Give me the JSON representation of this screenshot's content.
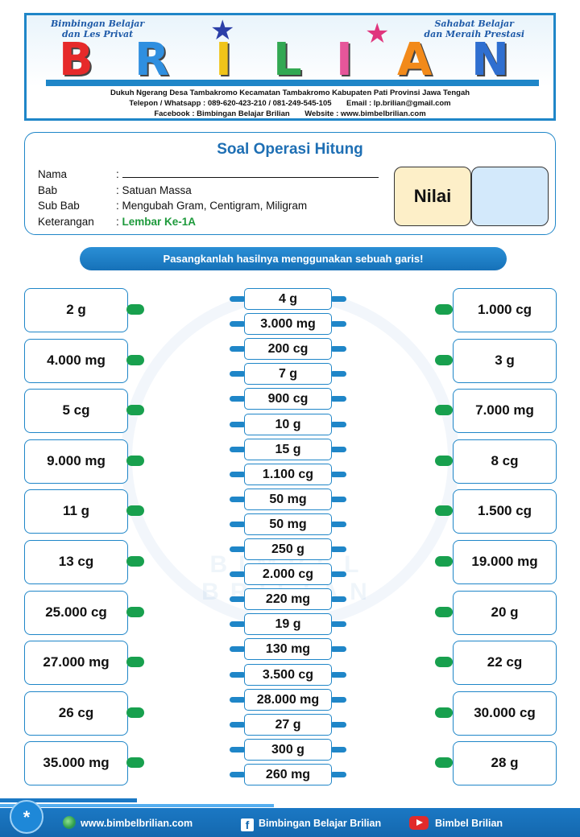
{
  "header": {
    "tagline_left": [
      "Bimbingan Belajar",
      "dan Les Privat"
    ],
    "tagline_right": [
      "Sahabat Belajar",
      "dan Meraih Prestasi"
    ],
    "logo_text": "BRILIAN",
    "address": "Dukuh Ngerang Desa Tambakromo Kecamatan Tambakromo Kabupaten Pati Provinsi Jawa Tengah",
    "contact": "Telepon / Whatsapp : 089-620-423-210 / 081-249-545-105       Email : lp.brilian@gmail.com",
    "social": "Facebook : Bimbingan Belajar Brilian       Website : www.bimbelbrilian.com",
    "logo_colors": [
      "#e62a2a",
      "#2f8fe0",
      "#f0c419",
      "#32a852",
      "#e6569a",
      "#f28a1a",
      "#2f6fd0"
    ]
  },
  "info": {
    "title": "Soal Operasi Hitung",
    "rows": [
      {
        "label": "Nama",
        "value": ":"
      },
      {
        "label": "Bab",
        "value": ": Satuan Massa"
      },
      {
        "label": "Sub Bab",
        "value": ": Mengubah Gram, Centigram, Miligram"
      },
      {
        "label": "Keterangan",
        "value_prefix": ": ",
        "value": "Lembar Ke-1A"
      }
    ],
    "nilai_label": "Nilai"
  },
  "instruction": "Pasangkanlah hasilnya menggunakan sebuah garis!",
  "left_items": [
    "2 g",
    "4.000 mg",
    "5 cg",
    "9.000 mg",
    "11 g",
    "13 cg",
    "25.000 cg",
    "27.000 mg",
    "26 cg",
    "35.000 mg"
  ],
  "middle_items": [
    "4 g",
    "3.000 mg",
    "200 cg",
    "7 g",
    "900 cg",
    "10 g",
    "15 g",
    "1.100 cg",
    "50 mg",
    "50 mg",
    "250 g",
    "2.000 cg",
    "220 mg",
    "19 g",
    "130 mg",
    "3.500 cg",
    "28.000 mg",
    "27 g",
    "300 g",
    "260 mg"
  ],
  "right_items": [
    "1.000 cg",
    "3 g",
    "7.000 mg",
    "8 cg",
    "1.500 cg",
    "19.000 mg",
    "20 g",
    "22 cg",
    "30.000 cg",
    "28 g"
  ],
  "footer": {
    "badge": "*",
    "website": "www.bimbelbrilian.com",
    "facebook": "Bimbingan Belajar Brilian",
    "youtube": "Bimbel Brilian"
  }
}
